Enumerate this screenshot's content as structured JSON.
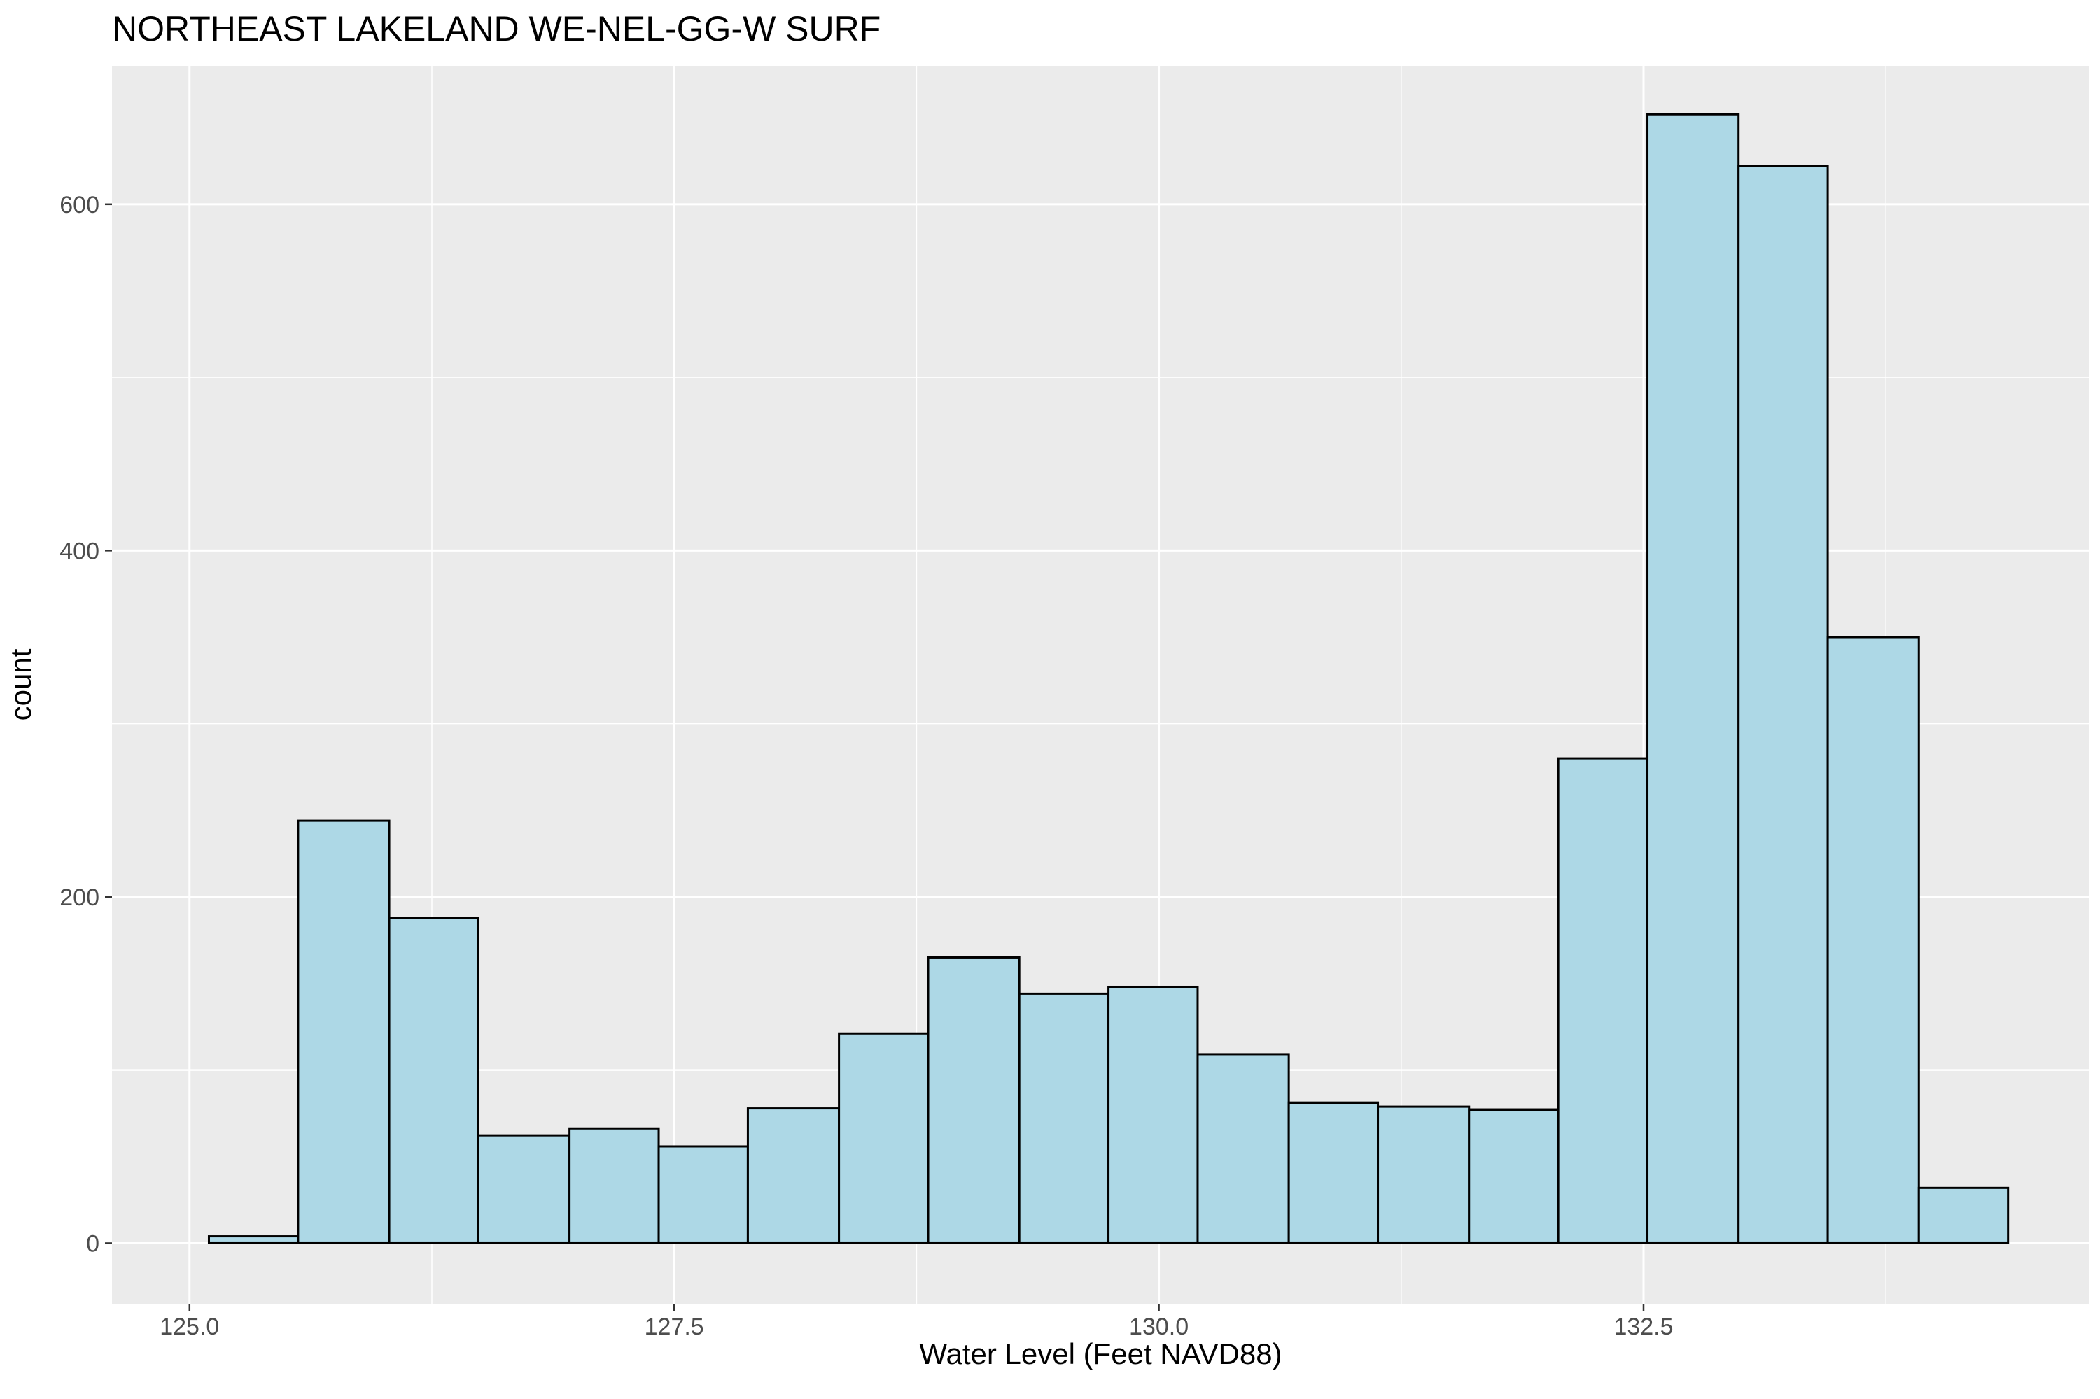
{
  "chart_data": {
    "type": "bar",
    "title": "NORTHEAST LAKELAND WE-NEL-GG-W SURF",
    "xlabel": "Water Level (Feet NAVD88)",
    "ylabel": "count",
    "xlim": [
      124.6,
      134.8
    ],
    "ylim": [
      -35,
      680
    ],
    "grid": true,
    "x_ticks": [
      {
        "value": 125.0,
        "label": "125.0"
      },
      {
        "value": 127.5,
        "label": "127.5"
      },
      {
        "value": 130.0,
        "label": "130.0"
      },
      {
        "value": 132.5,
        "label": "132.5"
      }
    ],
    "y_ticks": [
      {
        "value": 0,
        "label": "0"
      },
      {
        "value": 200,
        "label": "200"
      },
      {
        "value": 400,
        "label": "400"
      },
      {
        "value": 600,
        "label": "600"
      }
    ],
    "bin_edges": [
      125.1,
      125.56,
      126.03,
      126.49,
      126.96,
      127.42,
      127.88,
      128.35,
      128.81,
      129.28,
      129.74,
      130.2,
      130.67,
      131.13,
      131.6,
      132.06,
      132.52,
      132.99,
      133.45,
      133.92,
      134.38
    ],
    "values": [
      4,
      244,
      188,
      62,
      66,
      56,
      78,
      121,
      165,
      144,
      148,
      109,
      81,
      79,
      77,
      280,
      652,
      622,
      350,
      32
    ],
    "colors": {
      "fill": "#ADD8E6",
      "stroke": "#000000",
      "panel": "#EBEBEB",
      "grid": "#FFFFFF"
    }
  }
}
